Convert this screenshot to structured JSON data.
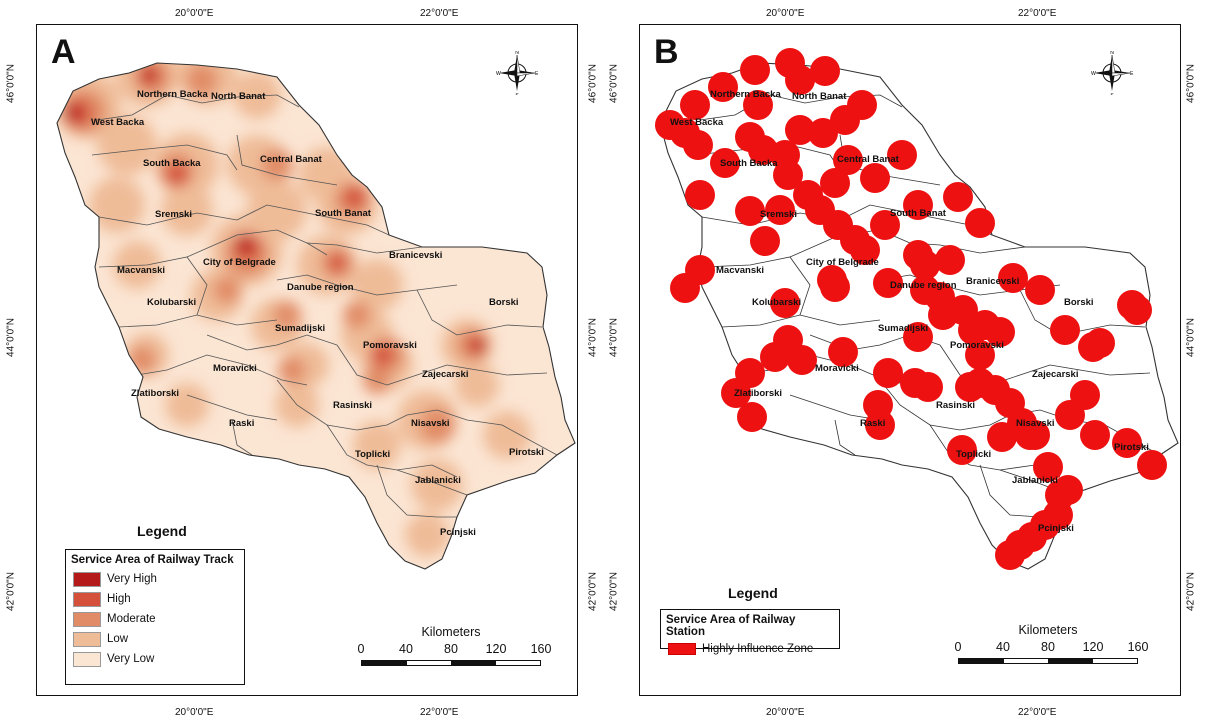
{
  "panel_a": {
    "letter": "A",
    "top_ticks": [
      "20°0'0\"E",
      "22°0'0\"E"
    ],
    "bottom_ticks": [
      "20°0'0\"E",
      "22°0'0\"E"
    ],
    "left_ticks": [
      "46°0'0\"N",
      "44°0'0\"N",
      "42°0'0\"N"
    ],
    "right_ticks": [
      "46°0'0\"N",
      "44°0'0\"N",
      "42°0'0\"N"
    ],
    "compass": {
      "n": "N",
      "s": "S",
      "e": "E",
      "w": "W"
    },
    "regions": [
      "Northern Backa",
      "North Banat",
      "West Backa",
      "South Backa",
      "Central Banat",
      "Sremski",
      "South Banat",
      "City of Belgrade",
      "Macvanski",
      "Branicevski",
      "Danube region",
      "Kolubarski",
      "Borski",
      "Sumadijski",
      "Pomoravski",
      "Moravicki",
      "Zajecarski",
      "Zlatiborski",
      "Rasinski",
      "Raski",
      "Nisavski",
      "Toplicki",
      "Pirotski",
      "Jablanicki",
      "Pcinjski"
    ],
    "legend": {
      "heading": "Legend",
      "title": "Service Area of Railway Track",
      "items": [
        {
          "label": "Very High",
          "color": "#b51a1a"
        },
        {
          "label": "High",
          "color": "#d4503a"
        },
        {
          "label": "Moderate",
          "color": "#e18c66"
        },
        {
          "label": "Low",
          "color": "#efbc98"
        },
        {
          "label": "Very Low",
          "color": "#fbe5d3"
        }
      ]
    },
    "scale": {
      "label": "Kilometers",
      "values": [
        "0",
        "40",
        "80",
        "120",
        "160"
      ]
    }
  },
  "panel_b": {
    "letter": "B",
    "top_ticks": [
      "20°0'0\"E",
      "22°0'0\"E"
    ],
    "bottom_ticks": [
      "20°0'0\"E",
      "22°0'0\"E"
    ],
    "left_ticks": [
      "46°0'0\"N",
      "44°0'0\"N",
      "42°0'0\"N"
    ],
    "right_ticks": [
      "46°0'0\"N",
      "44°0'0\"N",
      "42°0'0\"N"
    ],
    "compass": {
      "n": "N",
      "s": "S",
      "e": "E",
      "w": "W"
    },
    "regions": [
      "Northern Backa",
      "North Banat",
      "West Backa",
      "South Backa",
      "Central Banat",
      "Sremski",
      "South Banat",
      "City of Belgrade",
      "Macvanski",
      "Branicevski",
      "Danube region",
      "Kolubarski",
      "Borski",
      "Sumadijski",
      "Pomoravski",
      "Moravicki",
      "Zajecarski",
      "Zlatiborski",
      "Rasinski",
      "Raski",
      "Nisavski",
      "Toplicki",
      "Pirotski",
      "Jablanicki",
      "Pcinjski"
    ],
    "legend": {
      "heading": "Legend",
      "title": "Service Area of Railway Station",
      "items": [
        {
          "label": "Highly Influence Zone",
          "color": "#ee1111"
        }
      ]
    },
    "scale": {
      "label": "Kilometers",
      "values": [
        "0",
        "40",
        "80",
        "120",
        "160"
      ]
    }
  }
}
